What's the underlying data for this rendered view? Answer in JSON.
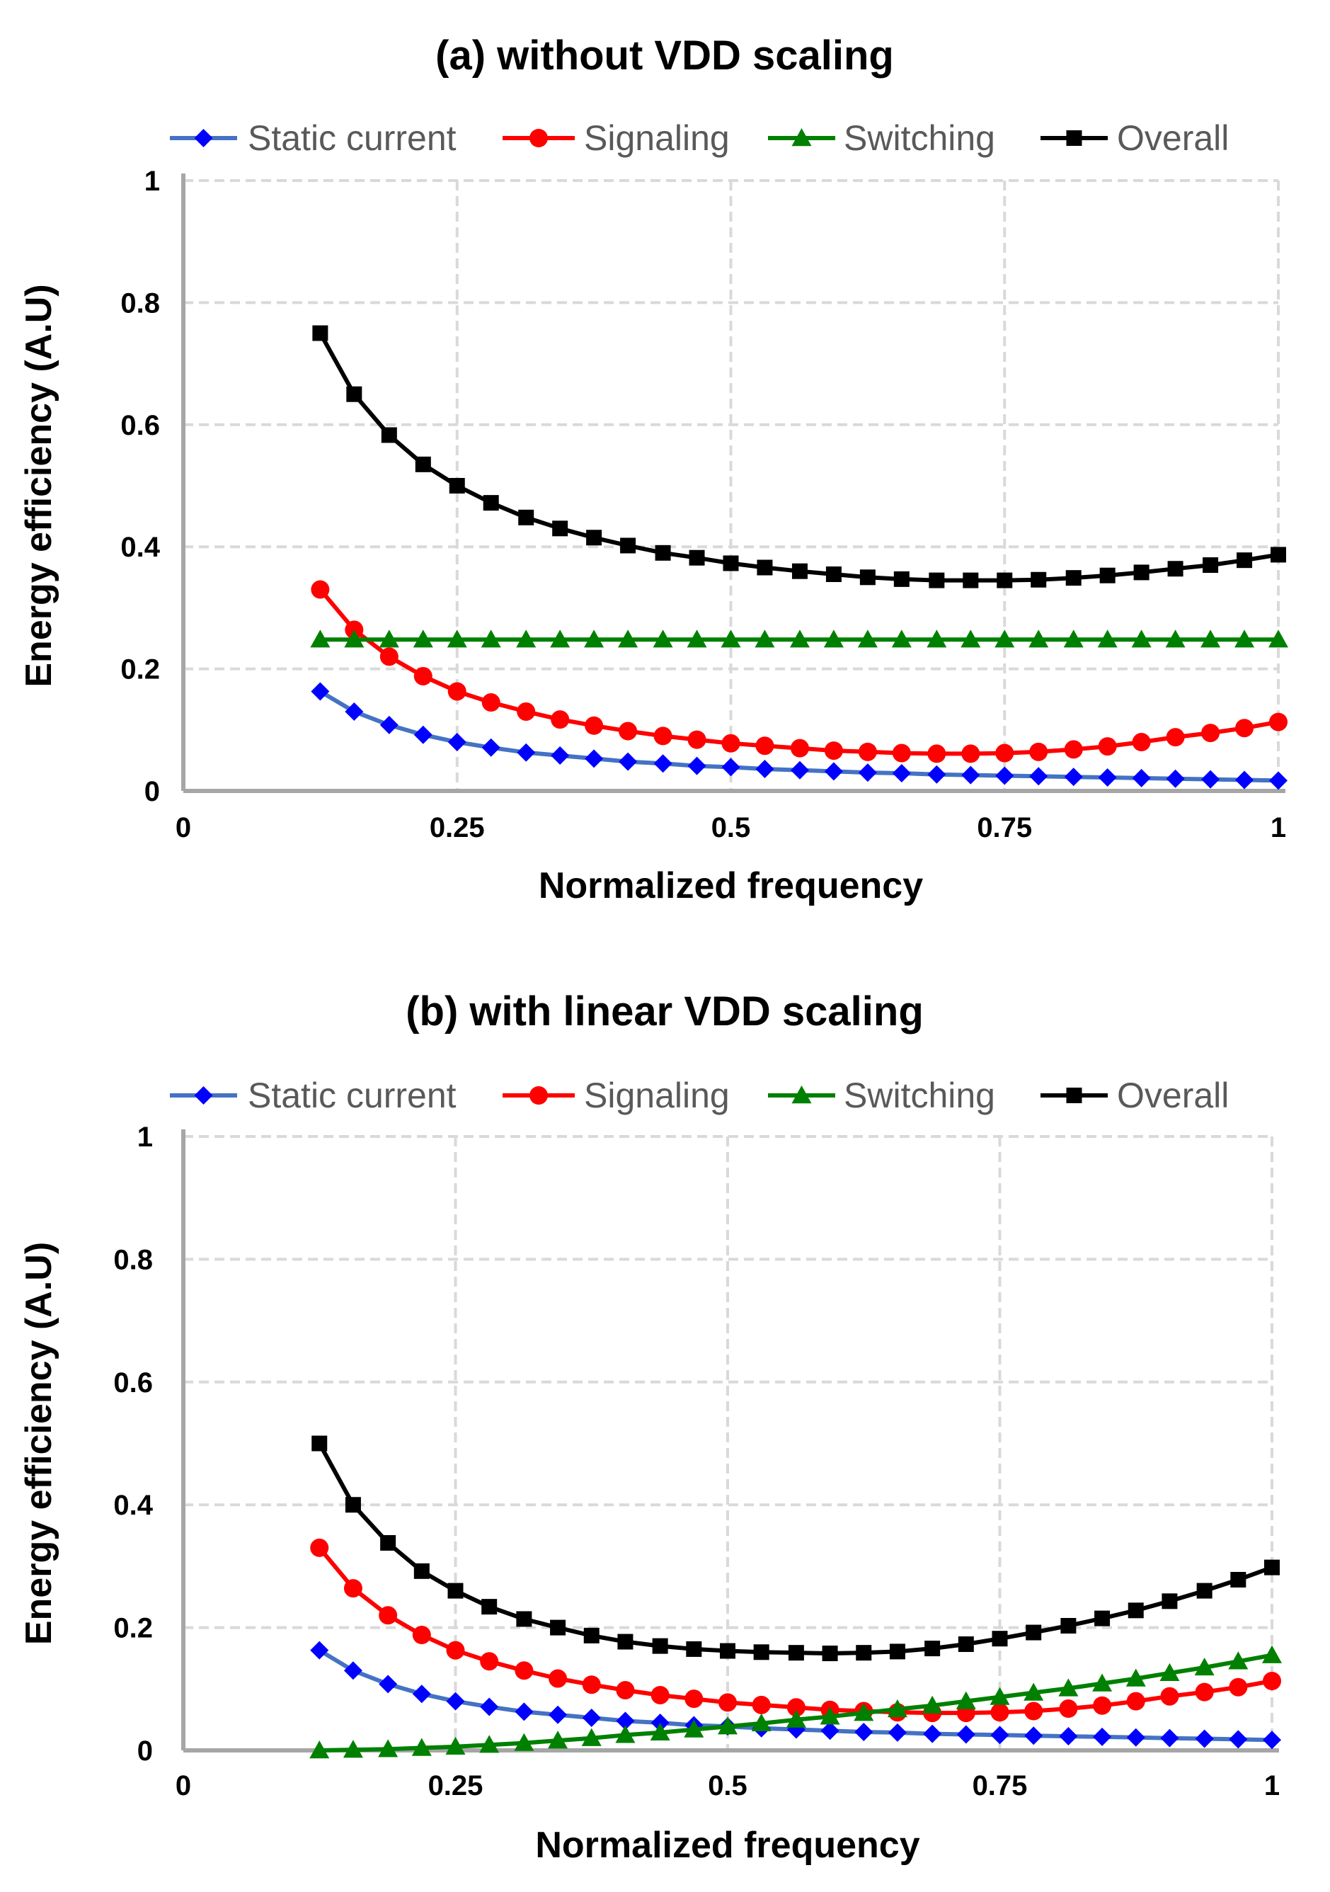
{
  "chart_data": [
    {
      "type": "line",
      "title": "(a) without VDD scaling",
      "xlabel": "Normalized frequency",
      "ylabel": "Energy efficiency (A.U)",
      "xlim": [
        0,
        1
      ],
      "ylim": [
        0,
        1
      ],
      "xticks": [
        0,
        0.25,
        0.5,
        0.75,
        1
      ],
      "xtick_labels": [
        "0",
        "0.25",
        "0.5",
        "0.75",
        "1"
      ],
      "yticks": [
        0,
        0.2,
        0.4,
        0.6,
        0.8,
        1
      ],
      "ytick_labels": [
        "0",
        "0.2",
        "0.4",
        "0.6",
        "0.8",
        "1"
      ],
      "grid": true,
      "legend_position": "top",
      "x": [
        0.125,
        0.156,
        0.188,
        0.219,
        0.25,
        0.281,
        0.313,
        0.344,
        0.375,
        0.406,
        0.438,
        0.469,
        0.5,
        0.531,
        0.563,
        0.594,
        0.625,
        0.656,
        0.688,
        0.719,
        0.75,
        0.781,
        0.813,
        0.844,
        0.875,
        0.906,
        0.938,
        0.969,
        1.0
      ],
      "series": [
        {
          "name": "Static current",
          "color": "#0000ff",
          "line_color": "#4472c4",
          "marker": "diamond",
          "values": [
            0.163,
            0.13,
            0.108,
            0.092,
            0.08,
            0.071,
            0.063,
            0.058,
            0.053,
            0.048,
            0.045,
            0.041,
            0.039,
            0.036,
            0.034,
            0.032,
            0.03,
            0.029,
            0.027,
            0.026,
            0.025,
            0.024,
            0.023,
            0.022,
            0.021,
            0.02,
            0.019,
            0.018,
            0.017
          ]
        },
        {
          "name": "Signaling",
          "color": "#ff0000",
          "line_color": "#ff0000",
          "marker": "circle",
          "values": [
            0.33,
            0.264,
            0.22,
            0.188,
            0.163,
            0.145,
            0.13,
            0.117,
            0.107,
            0.098,
            0.09,
            0.084,
            0.078,
            0.074,
            0.07,
            0.066,
            0.064,
            0.062,
            0.061,
            0.061,
            0.062,
            0.064,
            0.068,
            0.073,
            0.08,
            0.088,
            0.095,
            0.103,
            0.113
          ]
        },
        {
          "name": "Switching",
          "color": "#008000",
          "line_color": "#008000",
          "marker": "triangle",
          "values": [
            0.248,
            0.248,
            0.248,
            0.248,
            0.248,
            0.248,
            0.248,
            0.248,
            0.248,
            0.248,
            0.248,
            0.248,
            0.248,
            0.248,
            0.248,
            0.248,
            0.248,
            0.248,
            0.248,
            0.248,
            0.248,
            0.248,
            0.248,
            0.248,
            0.248,
            0.248,
            0.248,
            0.248,
            0.248
          ]
        },
        {
          "name": "Overall",
          "color": "#000000",
          "line_color": "#000000",
          "marker": "square",
          "values": [
            0.75,
            0.65,
            0.583,
            0.535,
            0.5,
            0.472,
            0.448,
            0.43,
            0.415,
            0.402,
            0.39,
            0.382,
            0.373,
            0.366,
            0.36,
            0.355,
            0.35,
            0.347,
            0.345,
            0.345,
            0.345,
            0.346,
            0.349,
            0.353,
            0.358,
            0.364,
            0.37,
            0.378,
            0.387
          ]
        }
      ]
    },
    {
      "type": "line",
      "title": "(b) with linear VDD scaling",
      "xlabel": "Normalized frequency",
      "ylabel": "Energy efficiency (A.U)",
      "xlim": [
        0,
        1
      ],
      "ylim": [
        0,
        1
      ],
      "xticks": [
        0,
        0.25,
        0.5,
        0.75,
        1
      ],
      "xtick_labels": [
        "0",
        "0.25",
        "0.5",
        "0.75",
        "1"
      ],
      "yticks": [
        0,
        0.2,
        0.4,
        0.6,
        0.8,
        1
      ],
      "ytick_labels": [
        "0",
        "0.2",
        "0.4",
        "0.6",
        "0.8",
        "1"
      ],
      "grid": true,
      "legend_position": "top",
      "x": [
        0.125,
        0.156,
        0.188,
        0.219,
        0.25,
        0.281,
        0.313,
        0.344,
        0.375,
        0.406,
        0.438,
        0.469,
        0.5,
        0.531,
        0.563,
        0.594,
        0.625,
        0.656,
        0.688,
        0.719,
        0.75,
        0.781,
        0.813,
        0.844,
        0.875,
        0.906,
        0.938,
        0.969,
        1.0
      ],
      "series": [
        {
          "name": "Static current",
          "color": "#0000ff",
          "line_color": "#4472c4",
          "marker": "diamond",
          "values": [
            0.163,
            0.13,
            0.108,
            0.092,
            0.08,
            0.071,
            0.063,
            0.058,
            0.053,
            0.048,
            0.045,
            0.041,
            0.039,
            0.036,
            0.034,
            0.032,
            0.03,
            0.029,
            0.027,
            0.026,
            0.025,
            0.024,
            0.023,
            0.022,
            0.021,
            0.02,
            0.019,
            0.018,
            0.017
          ]
        },
        {
          "name": "Signaling",
          "color": "#ff0000",
          "line_color": "#ff0000",
          "marker": "circle",
          "values": [
            0.33,
            0.264,
            0.22,
            0.188,
            0.163,
            0.145,
            0.13,
            0.117,
            0.107,
            0.098,
            0.09,
            0.084,
            0.078,
            0.074,
            0.07,
            0.066,
            0.064,
            0.062,
            0.061,
            0.061,
            0.062,
            0.064,
            0.068,
            0.073,
            0.08,
            0.088,
            0.095,
            0.103,
            0.113
          ]
        },
        {
          "name": "Switching",
          "color": "#008000",
          "line_color": "#008000",
          "marker": "triangle",
          "values": [
            0.0,
            0.001,
            0.002,
            0.004,
            0.006,
            0.009,
            0.012,
            0.016,
            0.02,
            0.025,
            0.029,
            0.034,
            0.039,
            0.044,
            0.05,
            0.055,
            0.061,
            0.067,
            0.073,
            0.08,
            0.087,
            0.094,
            0.101,
            0.109,
            0.117,
            0.126,
            0.135,
            0.145,
            0.155
          ]
        },
        {
          "name": "Overall",
          "color": "#000000",
          "line_color": "#000000",
          "marker": "square",
          "values": [
            0.5,
            0.4,
            0.338,
            0.292,
            0.26,
            0.234,
            0.214,
            0.2,
            0.187,
            0.177,
            0.17,
            0.165,
            0.162,
            0.16,
            0.159,
            0.158,
            0.159,
            0.161,
            0.166,
            0.173,
            0.182,
            0.192,
            0.203,
            0.215,
            0.228,
            0.243,
            0.26,
            0.278,
            0.298
          ]
        }
      ]
    }
  ]
}
